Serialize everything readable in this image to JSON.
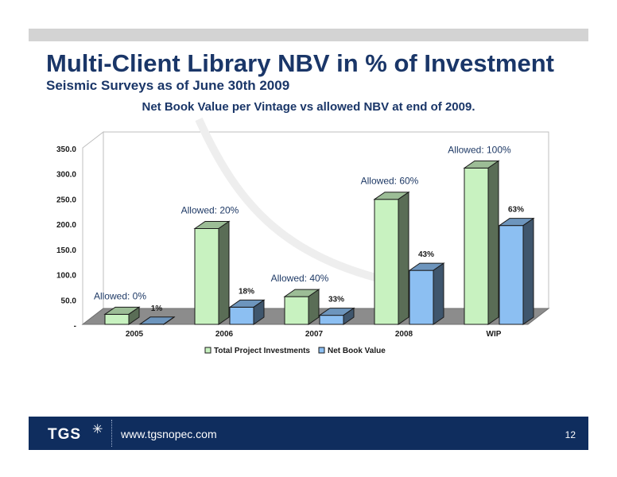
{
  "header": {
    "title": "Multi-Client Library NBV in % of Investment",
    "subtitle": "Seismic Surveys as of June 30th 2009"
  },
  "chart_data": {
    "type": "bar",
    "title": "Net Book Value per Vintage vs allowed NBV at end of 2009.",
    "categories": [
      "2005",
      "2006",
      "2007",
      "2008",
      "WIP"
    ],
    "series": [
      {
        "name": "Total Project Investments",
        "values": [
          20,
          190,
          55,
          248,
          310
        ],
        "color": "#c8f2c0"
      },
      {
        "name": "Net Book Value",
        "values": [
          0.3,
          34,
          18,
          107,
          196
        ],
        "color": "#8cbff2"
      }
    ],
    "nbv_labels": [
      "1%",
      "18%",
      "33%",
      "43%",
      "63%"
    ],
    "allowed_labels": [
      "Allowed: 0%",
      "Allowed: 20%",
      "Allowed: 40%",
      "Allowed: 60%",
      "Allowed: 100%"
    ],
    "y_ticks": [
      {
        "value": 0,
        "label": "-"
      },
      {
        "value": 50,
        "label": "50.0"
      },
      {
        "value": 100,
        "label": "100.0"
      },
      {
        "value": 150,
        "label": "150.0"
      },
      {
        "value": 200,
        "label": "200.0"
      },
      {
        "value": 250,
        "label": "250.0"
      },
      {
        "value": 300,
        "label": "300.0"
      },
      {
        "value": 350,
        "label": "350.0"
      }
    ],
    "ylim": [
      0,
      350
    ],
    "grid": false,
    "legend": "bottom"
  },
  "footer": {
    "logo": "TGS",
    "logo_icon": "starburst-icon",
    "url": "www.tgsnopec.com",
    "page_number": "12"
  }
}
